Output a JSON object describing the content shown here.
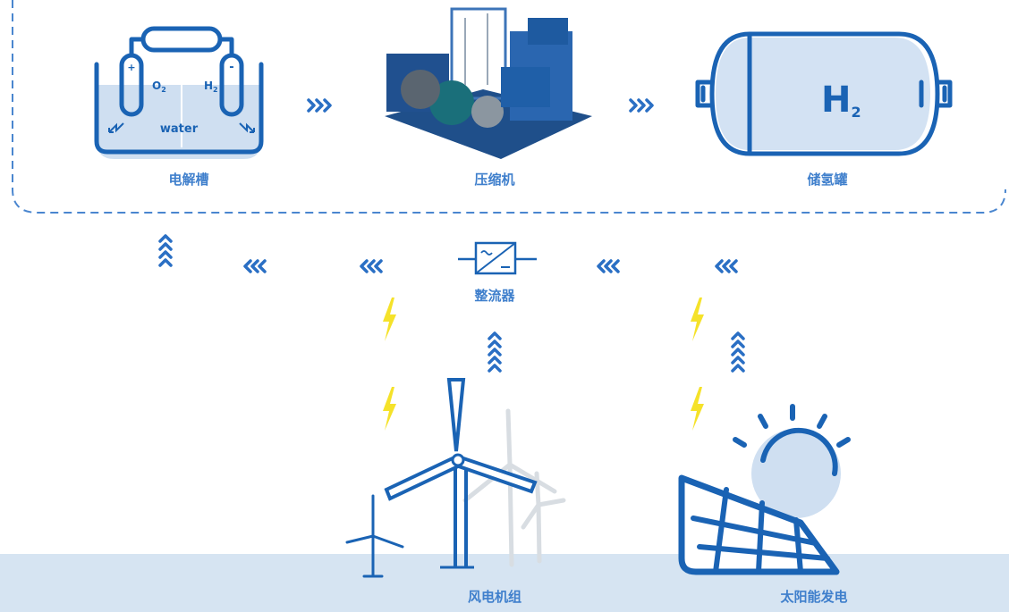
{
  "electrolyzer": {
    "label": "电解槽",
    "plus": "+",
    "minus": "-",
    "oxygen": {
      "main": "O",
      "sub": "2"
    },
    "hydrogen": {
      "main": "H",
      "sub": "2"
    },
    "water": "water"
  },
  "compressor": {
    "label": "压缩机"
  },
  "tank": {
    "label": "储氢罐",
    "formula": {
      "main": "H",
      "sub": "2"
    }
  },
  "rectifier": {
    "label": "整流器"
  },
  "wind": {
    "label": "风电机组"
  },
  "solar": {
    "label": "太阳能发电"
  }
}
